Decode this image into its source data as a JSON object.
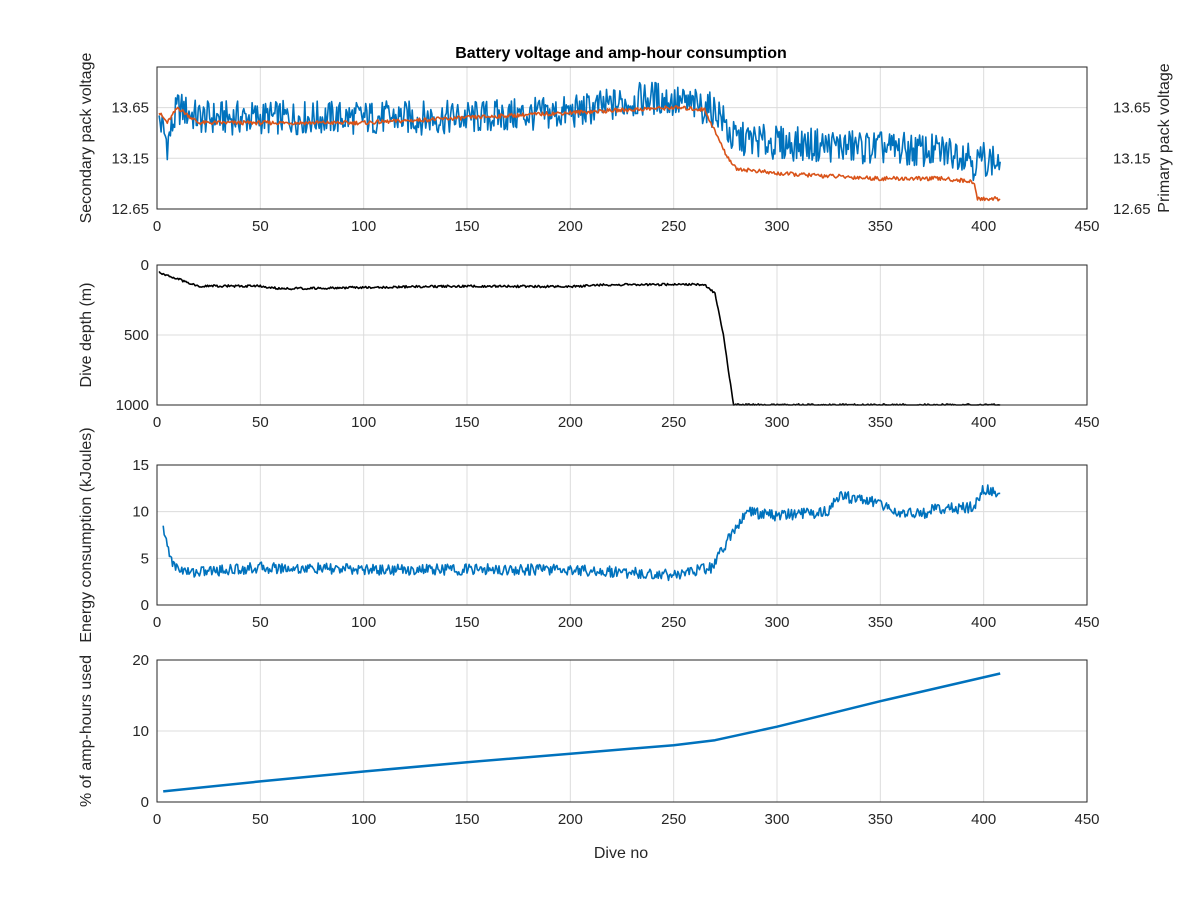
{
  "figure": {
    "title": "Battery voltage and amp-hour consumption",
    "xlabel": "Dive no"
  },
  "colors": {
    "secondary": "#0072BD",
    "primary": "#D95319",
    "depth": "#000000",
    "energy": "#0072BD",
    "amphours": "#0072BD",
    "grid": "#dcdcdc",
    "axis": "#262626"
  },
  "chart_data": [
    {
      "type": "line",
      "title": "Battery voltage and amp-hour consumption",
      "xlabel": "",
      "ylabel": "Secondary pack voltage",
      "ylabel_right": "Primary pack voltage",
      "xlim": [
        0,
        450
      ],
      "ylim": [
        12.65,
        14.05
      ],
      "ylim_right": [
        12.65,
        14.05
      ],
      "xticks": [
        "0",
        "50",
        "100",
        "150",
        "200",
        "250",
        "300",
        "350",
        "400",
        "450"
      ],
      "yticks": [
        "12.65",
        "13.15",
        "13.65"
      ],
      "yticks_right": [
        "12.65",
        "13.15",
        "13.65"
      ],
      "grid": true,
      "series": [
        {
          "axis": "left",
          "color": "secondary",
          "noise": 0.17,
          "x": [
            1,
            5,
            10,
            20,
            50,
            100,
            150,
            200,
            240,
            265,
            272,
            278,
            300,
            350,
            393,
            395,
            400,
            408
          ],
          "y": [
            13.55,
            13.3,
            13.65,
            13.55,
            13.55,
            13.55,
            13.55,
            13.6,
            13.75,
            13.65,
            13.6,
            13.35,
            13.3,
            13.25,
            13.2,
            13.1,
            13.15,
            13.1
          ]
        },
        {
          "axis": "right",
          "color": "primary",
          "noise": 0.02,
          "x": [
            1,
            5,
            10,
            20,
            100,
            200,
            250,
            265,
            275,
            280,
            300,
            320,
            350,
            380,
            395,
            397,
            408
          ],
          "y": [
            13.6,
            13.5,
            13.65,
            13.5,
            13.5,
            13.6,
            13.65,
            13.63,
            13.2,
            13.05,
            13.0,
            12.98,
            12.95,
            12.95,
            12.92,
            12.75,
            12.75
          ]
        }
      ]
    },
    {
      "type": "line",
      "xlabel": "",
      "ylabel": "Dive depth (m)",
      "xlim": [
        0,
        450
      ],
      "ylim": [
        0,
        1000
      ],
      "reversed": true,
      "xticks": [
        "0",
        "50",
        "100",
        "150",
        "200",
        "250",
        "300",
        "350",
        "400",
        "450"
      ],
      "yticks": [
        "0",
        "500",
        "1000"
      ],
      "grid": true,
      "series": [
        {
          "color": "depth",
          "noise": 8,
          "x": [
            1,
            10,
            20,
            50,
            60,
            100,
            150,
            200,
            220,
            265,
            270,
            274,
            277,
            279,
            300,
            350,
            408
          ],
          "y": [
            50,
            100,
            150,
            150,
            170,
            160,
            150,
            155,
            140,
            140,
            200,
            500,
            800,
            1000,
            1000,
            1000,
            1000
          ]
        }
      ]
    },
    {
      "type": "line",
      "xlabel": "",
      "ylabel": "Energy consumption (kJoules)",
      "xlim": [
        0,
        450
      ],
      "ylim": [
        0,
        15
      ],
      "xticks": [
        "0",
        "50",
        "100",
        "150",
        "200",
        "250",
        "300",
        "350",
        "400",
        "450"
      ],
      "yticks": [
        "0",
        "5",
        "10",
        "15"
      ],
      "grid": true,
      "series": [
        {
          "color": "energy",
          "noise": 0.6,
          "x": [
            3,
            8,
            15,
            50,
            100,
            150,
            200,
            250,
            268,
            275,
            285,
            300,
            325,
            330,
            350,
            355,
            370,
            375,
            395,
            400,
            408
          ],
          "y": [
            8,
            4.2,
            3.5,
            4,
            3.8,
            3.8,
            3.8,
            3.2,
            4,
            6.5,
            10,
            9.6,
            10,
            11.7,
            11,
            10,
            9.7,
            10.2,
            10.5,
            12.5,
            12
          ]
        }
      ]
    },
    {
      "type": "line",
      "xlabel": "Dive no",
      "ylabel": "% of amp-hours used",
      "xlim": [
        0,
        450
      ],
      "ylim": [
        0,
        20
      ],
      "xticks": [
        "0",
        "50",
        "100",
        "150",
        "200",
        "250",
        "300",
        "350",
        "400",
        "450"
      ],
      "yticks": [
        "0",
        "10",
        "20"
      ],
      "grid": true,
      "series": [
        {
          "color": "amphours",
          "noise": 0,
          "x": [
            3,
            50,
            100,
            150,
            200,
            250,
            270,
            300,
            350,
            408
          ],
          "y": [
            1.5,
            2.9,
            4.3,
            5.6,
            6.8,
            8.0,
            8.7,
            10.6,
            14.2,
            18.1
          ]
        }
      ]
    }
  ]
}
